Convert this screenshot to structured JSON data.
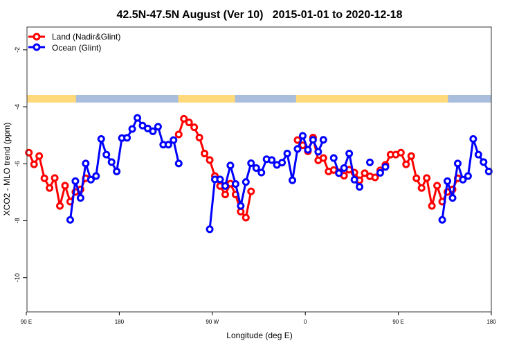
{
  "chart_data": {
    "type": "line",
    "title": "42.5N-47.5N August (Ver 10)   2015-01-01 to 2020-12-18",
    "xlabel": "Longitude (deg E)",
    "ylabel": "XCO2 - MLO trend (ppm)",
    "xlim_lon": [
      90,
      180
    ],
    "x_wrap_note_shown": false,
    "xticks": [
      {
        "lon": 90,
        "label": "90 E"
      },
      {
        "lon": 180,
        "label": "180"
      },
      {
        "lon": -90,
        "label": "90 W"
      },
      {
        "lon": 0,
        "label": "0"
      },
      {
        "lon": 90,
        "label": "90 E"
      },
      {
        "lon": 180,
        "label": "180"
      }
    ],
    "ylim": [
      -11.2,
      -1.2
    ],
    "yticks": [
      -2,
      -4,
      -6,
      -8,
      -10
    ],
    "grid": false,
    "legend_position": "top-left",
    "land_mask": {
      "land_color": "#FFD97A",
      "ocean_color": "#A8BEDC",
      "land_lon_ranges": [
        [
          90,
          138
        ],
        [
          -123,
          -68
        ],
        [
          -9,
          138
        ]
      ]
    },
    "series": [
      {
        "name": "Land (Nadir&Glint)",
        "color": "#FF0000",
        "segments": [
          [
            [
              92.5,
              -5.61
            ],
            [
              97.5,
              -6.02
            ],
            [
              102.5,
              -5.73
            ],
            [
              107.5,
              -6.51
            ],
            [
              112.5,
              -6.85
            ],
            [
              117.5,
              -6.5
            ],
            [
              122.5,
              -7.48
            ],
            [
              127.5,
              -6.77
            ],
            [
              132.5,
              -7.33
            ],
            [
              137.5,
              -6.99
            ],
            [
              142.5,
              -6.9
            ],
            [
              147.5,
              -6.51
            ]
          ],
          [
            [
              -122.5,
              -4.97
            ],
            [
              -117.5,
              -4.42
            ],
            [
              -112.5,
              -4.55
            ],
            [
              -107.5,
              -4.72
            ],
            [
              -102.5,
              -5.08
            ],
            [
              -97.5,
              -5.64
            ],
            [
              -92.5,
              -5.87
            ],
            [
              -87.5,
              -6.43
            ],
            [
              -82.5,
              -6.78
            ],
            [
              -77.5,
              -7.08
            ],
            [
              -72.5,
              -6.7
            ],
            [
              -67.5,
              -7.08
            ],
            [
              -62.5,
              -7.68
            ],
            [
              -57.5,
              -7.89
            ],
            [
              -52.5,
              -6.97
            ]
          ],
          [
            [
              -7.5,
              -5.17
            ],
            [
              -2.5,
              -5.35
            ],
            [
              2.5,
              -5.56
            ],
            [
              7.5,
              -5.08
            ],
            [
              12.5,
              -5.88
            ],
            [
              17.5,
              -5.8
            ],
            [
              22.5,
              -6.27
            ],
            [
              27.5,
              -6.22
            ],
            [
              32.5,
              -6.3
            ],
            [
              37.5,
              -6.42
            ],
            [
              42.5,
              -6.21
            ],
            [
              47.5,
              -6.31
            ],
            [
              52.5,
              -6.58
            ],
            [
              57.5,
              -6.33
            ],
            [
              62.5,
              -6.44
            ],
            [
              67.5,
              -6.48
            ],
            [
              72.5,
              -6.23
            ],
            [
              77.5,
              -6.04
            ],
            [
              82.5,
              -5.68
            ],
            [
              87.5,
              -5.68
            ],
            [
              92.5,
              -5.61
            ],
            [
              97.5,
              -6.02
            ],
            [
              102.5,
              -5.73
            ],
            [
              107.5,
              -6.51
            ],
            [
              112.5,
              -6.85
            ],
            [
              117.5,
              -6.5
            ],
            [
              122.5,
              -7.48
            ],
            [
              127.5,
              -6.77
            ],
            [
              132.5,
              -7.33
            ],
            [
              137.5,
              -6.99
            ],
            [
              142.5,
              -6.9
            ],
            [
              147.5,
              -6.51
            ]
          ]
        ]
      },
      {
        "name": "Ocean (Glint)",
        "color": "#0000FF",
        "segments": [
          [
            [
              132.5,
              -7.97
            ],
            [
              137.5,
              -6.61
            ],
            [
              142.5,
              -7.2
            ],
            [
              147.5,
              -5.99
            ],
            [
              152.5,
              -6.56
            ],
            [
              157.5,
              -6.43
            ],
            [
              162.5,
              -5.13
            ],
            [
              167.5,
              -5.68
            ],
            [
              172.5,
              -5.94
            ],
            [
              177.5,
              -6.27
            ],
            [
              -177.5,
              -5.1
            ],
            [
              -172.5,
              -5.09
            ],
            [
              -167.5,
              -4.78
            ],
            [
              -162.5,
              -4.39
            ],
            [
              -157.5,
              -4.66
            ],
            [
              -152.5,
              -4.76
            ],
            [
              -147.5,
              -4.86
            ],
            [
              -142.5,
              -4.7
            ],
            [
              -137.5,
              -5.33
            ],
            [
              -132.5,
              -5.33
            ],
            [
              -127.5,
              -5.17
            ],
            [
              -122.5,
              -5.99
            ]
          ],
          [
            [
              -92.5,
              -8.3
            ],
            [
              -87.5,
              -6.55
            ],
            [
              -82.5,
              -6.55
            ],
            [
              -77.5,
              -6.78
            ],
            [
              -72.5,
              -6.06
            ],
            [
              -67.5,
              -6.71
            ],
            [
              -62.5,
              -7.48
            ],
            [
              -57.5,
              -6.64
            ],
            [
              -52.5,
              -5.98
            ],
            [
              -47.5,
              -6.15
            ],
            [
              -42.5,
              -6.31
            ],
            [
              -37.5,
              -5.84
            ],
            [
              -32.5,
              -5.87
            ],
            [
              -27.5,
              -6.04
            ],
            [
              -22.5,
              -5.96
            ],
            [
              -17.5,
              -5.64
            ],
            [
              -12.5,
              -6.58
            ],
            [
              -7.5,
              -5.48
            ],
            [
              -2.5,
              -5.02
            ],
            [
              2.5,
              -5.51
            ],
            [
              7.5,
              -5.16
            ],
            [
              12.5,
              -5.58
            ],
            [
              17.5,
              -5.16
            ]
          ],
          [
            [
              27.5,
              -5.8
            ],
            [
              32.5,
              -6.33
            ],
            [
              37.5,
              -6.15
            ],
            [
              42.5,
              -5.64
            ],
            [
              47.5,
              -6.56
            ],
            [
              52.5,
              -6.81
            ]
          ],
          [
            [
              62.5,
              -5.95
            ]
          ],
          [
            [
              72.5,
              -6.32
            ],
            [
              77.5,
              -6.11
            ]
          ],
          [
            [
              132.5,
              -7.97
            ],
            [
              137.5,
              -6.61
            ],
            [
              142.5,
              -7.2
            ],
            [
              147.5,
              -5.99
            ],
            [
              152.5,
              -6.56
            ],
            [
              157.5,
              -6.43
            ],
            [
              162.5,
              -5.13
            ],
            [
              167.5,
              -5.68
            ],
            [
              172.5,
              -5.94
            ],
            [
              177.5,
              -6.27
            ]
          ]
        ]
      }
    ]
  }
}
